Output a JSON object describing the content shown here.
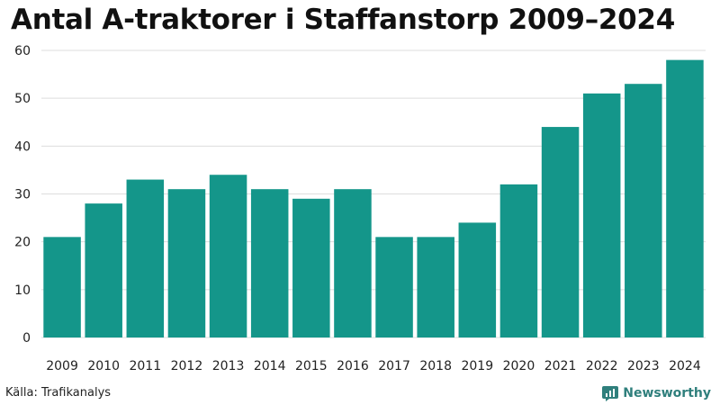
{
  "chart_data": {
    "type": "bar",
    "title": "Antal A-traktorer i Staffanstorp 2009–2024",
    "categories": [
      "2009",
      "2010",
      "2011",
      "2012",
      "2013",
      "2014",
      "2015",
      "2016",
      "2017",
      "2018",
      "2019",
      "2020",
      "2021",
      "2022",
      "2023",
      "2024"
    ],
    "values": [
      21,
      28,
      33,
      31,
      34,
      31,
      29,
      31,
      21,
      21,
      24,
      32,
      44,
      51,
      53,
      58
    ],
    "xlabel": "",
    "ylabel": "",
    "ylim": [
      0,
      60
    ],
    "yticks": [
      "0",
      "10",
      "20",
      "30",
      "40",
      "50",
      "60"
    ],
    "grid": true,
    "bar_color": "#14968a"
  },
  "footer": {
    "source": "Källa: Trafikanalys",
    "brand": "Newsworthy",
    "brand_color": "#2f7f7c"
  },
  "icons": {
    "brand_icon": "newsworthy-logo-icon"
  }
}
